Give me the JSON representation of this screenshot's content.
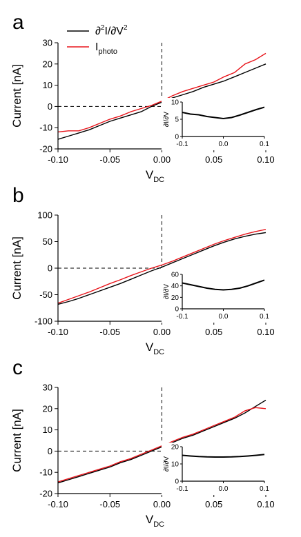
{
  "colors": {
    "black_series": "#000000",
    "red_series": "#e8141a"
  },
  "legend": {
    "black_main": "∂",
    "black_sup1": "2",
    "black_mid": "I/∂V",
    "black_sup2": "2",
    "red_main": "I",
    "red_sub": "photo"
  },
  "chart_data": [
    {
      "type": "line",
      "panel_label": "a",
      "xlabel": "V",
      "xlabel_sub": "DC",
      "ylabel": "Current [nA]",
      "xlim": [
        -0.1,
        0.1
      ],
      "ylim": [
        -20,
        30
      ],
      "xticks": [
        -0.1,
        -0.05,
        0.0,
        0.05,
        0.1
      ],
      "xtick_labels": [
        "-0.10",
        "-0.05",
        "0.00",
        "0.05",
        "0.10"
      ],
      "yticks": [
        -20,
        -10,
        0,
        10,
        20,
        30
      ],
      "ytick_labels": [
        "-20",
        "-10",
        "0",
        "10",
        "20",
        "30"
      ],
      "show_legend": true,
      "series": [
        {
          "color": "black",
          "x": [
            -0.1,
            -0.09,
            -0.08,
            -0.07,
            -0.06,
            -0.05,
            -0.04,
            -0.03,
            -0.02,
            -0.01,
            0.0,
            0.01,
            0.02,
            0.03,
            0.04,
            0.05,
            0.06,
            0.07,
            0.08,
            0.09,
            0.1
          ],
          "y": [
            -15.5,
            -14,
            -12.5,
            -11,
            -9,
            -7,
            -5.5,
            -4,
            -2.5,
            0,
            2,
            4,
            5.5,
            7,
            9,
            10.5,
            12,
            14,
            16,
            18,
            20
          ]
        },
        {
          "color": "red",
          "x": [
            -0.1,
            -0.09,
            -0.08,
            -0.07,
            -0.06,
            -0.05,
            -0.04,
            -0.03,
            -0.02,
            -0.01,
            0.0,
            0.01,
            0.02,
            0.03,
            0.04,
            0.05,
            0.06,
            0.07,
            0.08,
            0.09,
            0.1
          ],
          "y": [
            -12,
            -11.5,
            -11.5,
            -10,
            -8,
            -6,
            -4.5,
            -2.5,
            -1,
            0.5,
            2.5,
            5,
            7,
            8.5,
            10,
            11.5,
            14,
            16,
            20,
            22,
            25
          ]
        }
      ],
      "inset": {
        "ylabel": "∂I/∂V",
        "xlim": [
          -0.1,
          0.1
        ],
        "ylim": [
          0,
          10
        ],
        "xticks": [
          -0.1,
          0.0,
          0.1
        ],
        "xtick_labels": [
          "-0.1",
          "0.0",
          "0.1"
        ],
        "yticks": [
          0,
          5,
          10
        ],
        "ytick_labels": [
          "0",
          "5",
          "10"
        ],
        "x": [
          -0.1,
          -0.08,
          -0.06,
          -0.04,
          -0.02,
          0.0,
          0.02,
          0.04,
          0.06,
          0.08,
          0.1
        ],
        "y": [
          7,
          6.5,
          6.3,
          5.8,
          5.5,
          5.2,
          5.5,
          6.2,
          7,
          7.8,
          8.5
        ]
      }
    },
    {
      "type": "line",
      "panel_label": "b",
      "xlabel": "V",
      "xlabel_sub": "DC",
      "ylabel": "Current [nA]",
      "xlim": [
        -0.1,
        0.1
      ],
      "ylim": [
        -100,
        100
      ],
      "xticks": [
        -0.1,
        -0.05,
        0.0,
        0.05,
        0.1
      ],
      "xtick_labels": [
        "-0.10",
        "-0.05",
        "0.00",
        "0.05",
        "0.10"
      ],
      "yticks": [
        -100,
        -50,
        0,
        50,
        100
      ],
      "ytick_labels": [
        "-100",
        "-50",
        "0",
        "50",
        "100"
      ],
      "show_legend": false,
      "series": [
        {
          "color": "black",
          "x": [
            -0.1,
            -0.09,
            -0.08,
            -0.07,
            -0.06,
            -0.05,
            -0.04,
            -0.03,
            -0.02,
            -0.01,
            0.0,
            0.01,
            0.02,
            0.03,
            0.04,
            0.05,
            0.06,
            0.07,
            0.08,
            0.09,
            0.1
          ],
          "y": [
            -68,
            -63,
            -57,
            -50,
            -43,
            -36,
            -29,
            -21,
            -13,
            -5,
            2,
            10,
            18,
            26,
            34,
            42,
            49,
            55,
            60,
            64,
            67
          ]
        },
        {
          "color": "red",
          "x": [
            -0.1,
            -0.09,
            -0.08,
            -0.07,
            -0.06,
            -0.05,
            -0.04,
            -0.03,
            -0.02,
            -0.01,
            0.0,
            0.01,
            0.02,
            0.03,
            0.04,
            0.05,
            0.06,
            0.07,
            0.08,
            0.09,
            0.1
          ],
          "y": [
            -66,
            -59,
            -52,
            -45,
            -37,
            -29,
            -22,
            -14,
            -7,
            0,
            6,
            13,
            21,
            29,
            37,
            45,
            52,
            58,
            64,
            69,
            73
          ]
        }
      ],
      "inset": {
        "ylabel": "∂I/∂V",
        "xlim": [
          -0.1,
          0.1
        ],
        "ylim": [
          0,
          60
        ],
        "xticks": [
          -0.1,
          0.0,
          0.1
        ],
        "xtick_labels": [
          "-0.1",
          "0.0",
          "0.1"
        ],
        "yticks": [
          0,
          20,
          40,
          60
        ],
        "ytick_labels": [
          "0",
          "20",
          "40",
          "60"
        ],
        "x": [
          -0.1,
          -0.08,
          -0.06,
          -0.04,
          -0.02,
          0.0,
          0.02,
          0.04,
          0.06,
          0.08,
          0.1
        ],
        "y": [
          45,
          42,
          39,
          36,
          34,
          33,
          34,
          36,
          40,
          45,
          50
        ]
      }
    },
    {
      "type": "line",
      "panel_label": "c",
      "xlabel": "V",
      "xlabel_sub": "DC",
      "ylabel": "Current [nA]",
      "xlim": [
        -0.1,
        0.1
      ],
      "ylim": [
        -20,
        30
      ],
      "xticks": [
        -0.1,
        -0.05,
        0.0,
        0.05,
        0.1
      ],
      "xtick_labels": [
        "-0.10",
        "-0.05",
        "0.00",
        "0.05",
        "0.10"
      ],
      "yticks": [
        -20,
        -10,
        0,
        10,
        20,
        30
      ],
      "ytick_labels": [
        "-20",
        "-10",
        "0",
        "10",
        "20",
        "30"
      ],
      "show_legend": false,
      "series": [
        {
          "color": "black",
          "x": [
            -0.1,
            -0.09,
            -0.08,
            -0.07,
            -0.06,
            -0.05,
            -0.04,
            -0.03,
            -0.02,
            -0.01,
            0.0,
            0.01,
            0.02,
            0.03,
            0.04,
            0.05,
            0.06,
            0.07,
            0.08,
            0.09,
            0.1
          ],
          "y": [
            -15,
            -13.5,
            -12,
            -10.5,
            -9,
            -7.5,
            -5.5,
            -4,
            -2,
            0,
            2,
            4,
            6,
            7.5,
            9.5,
            11.5,
            13.5,
            15.5,
            18,
            21,
            24
          ]
        },
        {
          "color": "red",
          "x": [
            -0.1,
            -0.09,
            -0.08,
            -0.07,
            -0.06,
            -0.05,
            -0.04,
            -0.03,
            -0.02,
            -0.01,
            0.0,
            0.01,
            0.02,
            0.03,
            0.04,
            0.05,
            0.06,
            0.07,
            0.08,
            0.09,
            0.1
          ],
          "y": [
            -14.5,
            -13,
            -11.5,
            -10,
            -8.5,
            -7,
            -5,
            -3.5,
            -1.5,
            0.5,
            2.5,
            4.5,
            6.5,
            8,
            10,
            12,
            14,
            16,
            19,
            20.5,
            20
          ]
        }
      ],
      "inset": {
        "ylabel": "∂I/∂V",
        "xlim": [
          -0.1,
          0.1
        ],
        "ylim": [
          0,
          20
        ],
        "xticks": [
          -0.1,
          0.0,
          0.1
        ],
        "xtick_labels": [
          "-0.1",
          "0.0",
          "0.1"
        ],
        "yticks": [
          0,
          10,
          20
        ],
        "ytick_labels": [
          "0",
          "10",
          "20"
        ],
        "x": [
          -0.1,
          -0.08,
          -0.06,
          -0.04,
          -0.02,
          0.0,
          0.02,
          0.04,
          0.06,
          0.08,
          0.1
        ],
        "y": [
          15,
          14.6,
          14.3,
          14.1,
          14.0,
          14.0,
          14.1,
          14.3,
          14.6,
          15.0,
          15.5
        ]
      }
    }
  ]
}
